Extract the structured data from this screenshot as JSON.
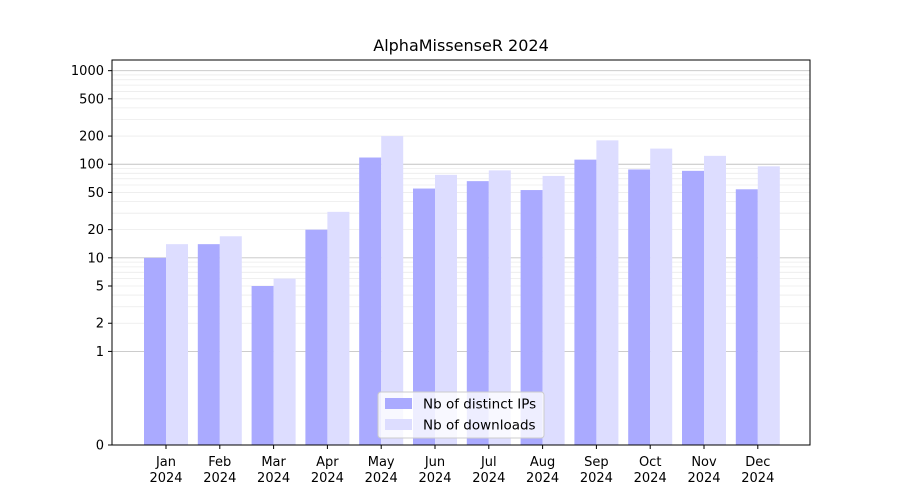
{
  "chart_data": {
    "type": "bar",
    "title": "AlphaMissenseR 2024",
    "xlabel": "",
    "ylabel": "",
    "y_scale": "symlog",
    "ylim": [
      0,
      1300
    ],
    "y_ticks": [
      0,
      1,
      2,
      5,
      10,
      20,
      50,
      100,
      200,
      500,
      1000
    ],
    "y_tick_labels": [
      "0",
      "1",
      "2",
      "5",
      "10",
      "20",
      "50",
      "100",
      "200",
      "500",
      "1000"
    ],
    "categories": [
      "Jan",
      "Feb",
      "Mar",
      "Apr",
      "May",
      "Jun",
      "Jul",
      "Aug",
      "Sep",
      "Oct",
      "Nov",
      "Dec"
    ],
    "category_years": [
      "2024",
      "2024",
      "2024",
      "2024",
      "2024",
      "2024",
      "2024",
      "2024",
      "2024",
      "2024",
      "2024",
      "2024"
    ],
    "series": [
      {
        "name": "Nb of distinct IPs",
        "color": "#aaaaff",
        "values": [
          10,
          14,
          5,
          20,
          118,
          55,
          66,
          53,
          112,
          88,
          85,
          54
        ]
      },
      {
        "name": "Nb of downloads",
        "color": "#ddddff",
        "values": [
          14,
          17,
          6,
          31,
          200,
          77,
          86,
          75,
          180,
          147,
          123,
          95
        ]
      }
    ],
    "grid": true,
    "legend_position": "bottom-center"
  }
}
